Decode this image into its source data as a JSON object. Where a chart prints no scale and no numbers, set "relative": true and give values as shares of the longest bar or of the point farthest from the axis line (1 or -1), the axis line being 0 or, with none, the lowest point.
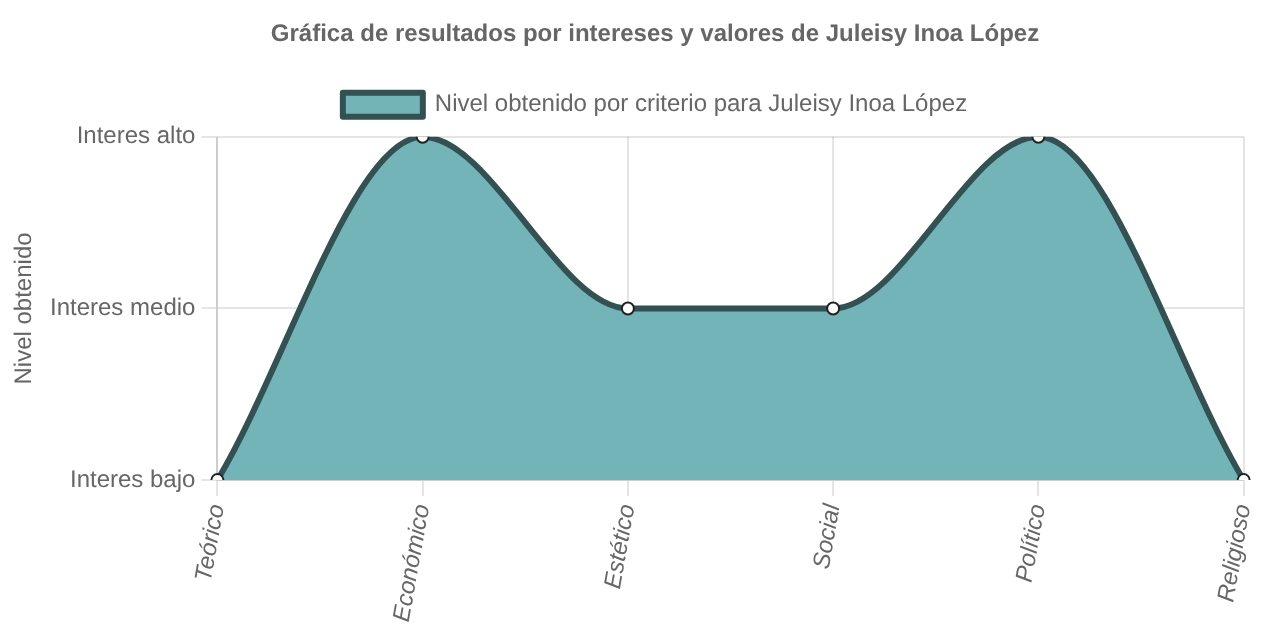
{
  "chart_data": {
    "type": "area",
    "title": "Gráfica de resultados por intereses y valores de Juleisy Inoa López",
    "annotations": [
      "Nivel obtenido"
    ],
    "categories": [
      "Teórico",
      "Económico",
      "Estético",
      "Social",
      "Político",
      "Religioso"
    ],
    "y_categories": [
      "Interes alto",
      "Interes medio",
      "Interes bajo"
    ],
    "relative": true,
    "series": [
      {
        "name": "Nivel obtenido por criterio para Juleisy Inoa López",
        "color": "#72b4b8",
        "values": [
          0,
          1,
          0.5,
          0.5,
          1,
          0
        ]
      }
    ],
    "grid": true,
    "legend": "top",
    "marker": "circle",
    "line_style": "solid"
  }
}
